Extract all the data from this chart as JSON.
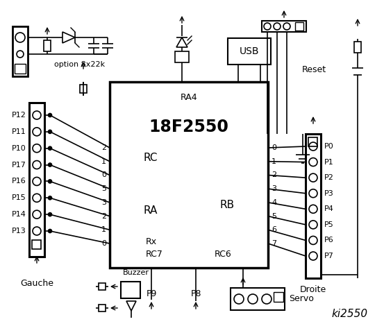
{
  "title": "ki2550",
  "chip_label": "18F2550",
  "chip_ra4": "RA4",
  "chip_rc_label": "RC",
  "chip_ra_label": "RA",
  "chip_rb_label": "RB",
  "chip_rx_label": "Rx",
  "chip_rc7_label": "RC7",
  "chip_rc6_label": "RC6",
  "left_connector_label": "Gauche",
  "right_connector_label": "Droite",
  "option_label": "option 8x22k",
  "usb_label": "USB",
  "reset_label": "Reset",
  "servo_label": "Servo",
  "buzzer_label": "Buzzer",
  "p8_label": "P8",
  "p9_label": "P9",
  "left_pins": [
    "P12",
    "P11",
    "P10",
    "P17",
    "P16",
    "P15",
    "P14",
    "P13"
  ],
  "left_rc_pins": [
    "2",
    "1",
    "0",
    "5",
    "3",
    "2",
    "1",
    "0"
  ],
  "right_rb_pins": [
    "0",
    "1",
    "2",
    "3",
    "4",
    "5",
    "6",
    "7"
  ],
  "right_pins": [
    "P0",
    "P1",
    "P2",
    "P3",
    "P4",
    "P5",
    "P6",
    "P7"
  ],
  "bg_color": "#ffffff",
  "fg_color": "#000000"
}
